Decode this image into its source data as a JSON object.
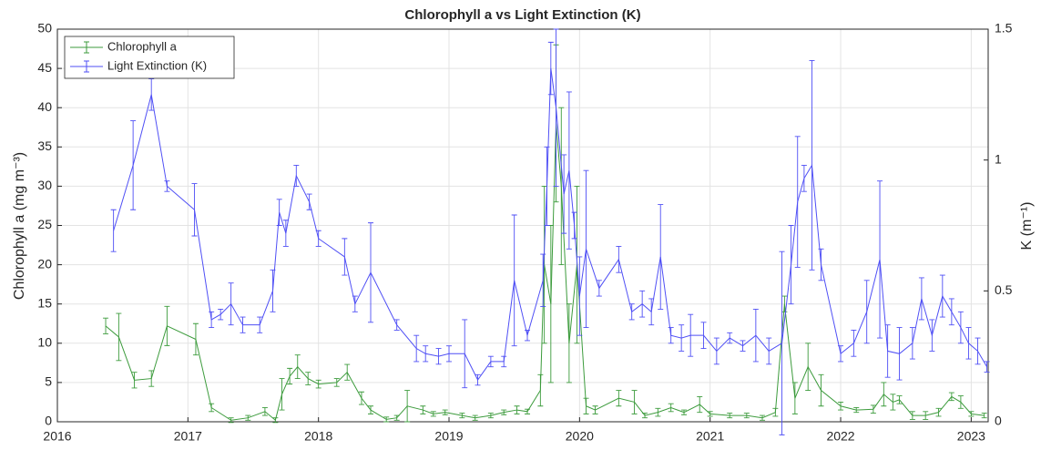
{
  "chart_data": {
    "type": "line",
    "title": "Chlorophyll a vs Light Extinction (K)",
    "ylabel": "Chlorophyll a (mg m⁻³)",
    "y2label": "K (m⁻¹)",
    "xlim": [
      2016,
      2023.13
    ],
    "xticks": [
      2016,
      2017,
      2018,
      2019,
      2020,
      2021,
      2022,
      2023
    ],
    "ylim": [
      0,
      50
    ],
    "yticks": [
      0,
      5,
      10,
      15,
      20,
      25,
      30,
      35,
      40,
      45,
      50
    ],
    "y2lim": [
      0,
      1.5
    ],
    "y2ticks": [
      0,
      0.5,
      1,
      1.5
    ],
    "grid": true,
    "legend": "upper-left",
    "series": [
      {
        "name": "Chlorophyll a",
        "color": "#3c9b3c",
        "axis": "y",
        "x": [
          2016.37,
          2016.47,
          2016.59,
          2016.72,
          2016.84,
          2017.06,
          2017.18,
          2017.33,
          2017.46,
          2017.59,
          2017.67,
          2017.72,
          2017.78,
          2017.84,
          2017.92,
          2018.0,
          2018.14,
          2018.22,
          2018.33,
          2018.4,
          2018.52,
          2018.6,
          2018.68,
          2018.8,
          2018.88,
          2018.97,
          2019.1,
          2019.2,
          2019.32,
          2019.42,
          2019.52,
          2019.6,
          2019.7,
          2019.73,
          2019.78,
          2019.82,
          2019.86,
          2019.92,
          2019.98,
          2020.05,
          2020.12,
          2020.3,
          2020.42,
          2020.5,
          2020.6,
          2020.7,
          2020.8,
          2020.92,
          2021.0,
          2021.15,
          2021.28,
          2021.4,
          2021.5,
          2021.57,
          2021.65,
          2021.75,
          2021.85,
          2022.0,
          2022.12,
          2022.25,
          2022.33,
          2022.4,
          2022.45,
          2022.55,
          2022.65,
          2022.75,
          2022.85,
          2022.92,
          2023.0,
          2023.1
        ],
        "values": [
          12.2,
          10.8,
          5.3,
          5.5,
          12.2,
          10.5,
          1.8,
          0.2,
          0.5,
          1.3,
          0.2,
          3.5,
          5.8,
          7,
          5.5,
          4.8,
          5,
          6.3,
          3,
          1.5,
          0.3,
          0.5,
          2,
          1.5,
          1,
          1.2,
          0.8,
          0.5,
          0.8,
          1.2,
          1.5,
          1.3,
          4,
          20,
          15,
          38,
          30,
          10,
          20,
          2,
          1.5,
          3,
          2.5,
          0.8,
          1.2,
          1.8,
          1.2,
          2.2,
          1,
          0.8,
          0.8,
          0.5,
          1.2,
          15,
          3,
          7,
          4,
          2,
          1.5,
          1.6,
          3.5,
          2.5,
          2.8,
          0.8,
          0.8,
          1.2,
          3.2,
          2.5,
          1,
          0.8
        ],
        "errors": [
          1,
          3,
          1,
          1,
          2.5,
          2,
          0.5,
          0.3,
          0.3,
          0.5,
          0.3,
          2,
          1,
          1.5,
          0.8,
          0.5,
          0.5,
          1,
          0.8,
          0.5,
          0.3,
          0.3,
          2,
          0.5,
          0.3,
          0.3,
          0.3,
          0.3,
          0.3,
          0.3,
          0.5,
          0.3,
          2,
          10,
          10,
          10,
          10,
          5,
          10,
          1,
          0.5,
          1,
          1.5,
          0.3,
          0.5,
          0.5,
          0.3,
          1,
          0.3,
          0.3,
          0.3,
          0.3,
          0.5,
          1,
          2,
          3,
          2,
          0.5,
          0.3,
          0.5,
          1.5,
          1,
          0.5,
          0.5,
          0.5,
          0.5,
          0.5,
          0.8,
          0.3,
          0.3
        ]
      },
      {
        "name": "Light Extinction (K)",
        "color": "#4f4ff5",
        "axis": "y2",
        "x": [
          2016.43,
          2016.58,
          2016.72,
          2016.84,
          2017.05,
          2017.18,
          2017.25,
          2017.33,
          2017.42,
          2017.55,
          2017.65,
          2017.7,
          2017.75,
          2017.83,
          2017.93,
          2018.0,
          2018.2,
          2018.28,
          2018.4,
          2018.6,
          2018.75,
          2018.82,
          2018.92,
          2019.0,
          2019.12,
          2019.22,
          2019.32,
          2019.42,
          2019.5,
          2019.6,
          2019.72,
          2019.75,
          2019.78,
          2019.82,
          2019.88,
          2019.92,
          2019.96,
          2020.0,
          2020.05,
          2020.15,
          2020.3,
          2020.4,
          2020.48,
          2020.55,
          2020.62,
          2020.7,
          2020.78,
          2020.85,
          2020.95,
          2021.05,
          2021.15,
          2021.25,
          2021.35,
          2021.45,
          2021.55,
          2021.62,
          2021.67,
          2021.72,
          2021.78,
          2021.85,
          2022.0,
          2022.1,
          2022.2,
          2022.3,
          2022.36,
          2022.45,
          2022.55,
          2022.62,
          2022.7,
          2022.78,
          2022.85,
          2022.92,
          2022.98,
          2023.05,
          2023.12
        ],
        "values": [
          0.73,
          0.98,
          1.25,
          0.9,
          0.81,
          0.39,
          0.41,
          0.45,
          0.37,
          0.37,
          0.5,
          0.8,
          0.72,
          0.94,
          0.84,
          0.7,
          0.63,
          0.45,
          0.57,
          0.37,
          0.28,
          0.26,
          0.25,
          0.26,
          0.26,
          0.16,
          0.23,
          0.23,
          0.54,
          0.33,
          0.54,
          0.9,
          1.35,
          1.2,
          0.87,
          0.96,
          0.75,
          0.48,
          0.66,
          0.51,
          0.62,
          0.42,
          0.45,
          0.42,
          0.63,
          0.33,
          0.32,
          0.33,
          0.33,
          0.27,
          0.32,
          0.29,
          0.33,
          0.27,
          0.3,
          0.6,
          0.84,
          0.93,
          0.98,
          0.6,
          0.26,
          0.3,
          0.42,
          0.62,
          0.27,
          0.26,
          0.3,
          0.47,
          0.33,
          0.48,
          0.42,
          0.36,
          0.3,
          0.27,
          0.21
        ],
        "errors": [
          0.08,
          0.17,
          0.06,
          0.02,
          0.1,
          0.03,
          0.02,
          0.08,
          0.03,
          0.03,
          0.08,
          0.05,
          0.05,
          0.04,
          0.03,
          0.03,
          0.07,
          0.03,
          0.19,
          0.02,
          0.05,
          0.03,
          0.03,
          0.03,
          0.13,
          0.02,
          0.02,
          0.02,
          0.25,
          0.02,
          0.1,
          0.15,
          0.1,
          0.3,
          0.15,
          0.3,
          0.05,
          0.15,
          0.3,
          0.03,
          0.05,
          0.03,
          0.05,
          0.05,
          0.2,
          0.03,
          0.05,
          0.08,
          0.05,
          0.05,
          0.02,
          0.02,
          0.1,
          0.05,
          0.35,
          0.15,
          0.25,
          0.05,
          0.4,
          0.06,
          0.03,
          0.05,
          0.12,
          0.3,
          0.1,
          0.1,
          0.06,
          0.08,
          0.06,
          0.08,
          0.05,
          0.06,
          0.06,
          0.05,
          0.02
        ]
      }
    ]
  }
}
